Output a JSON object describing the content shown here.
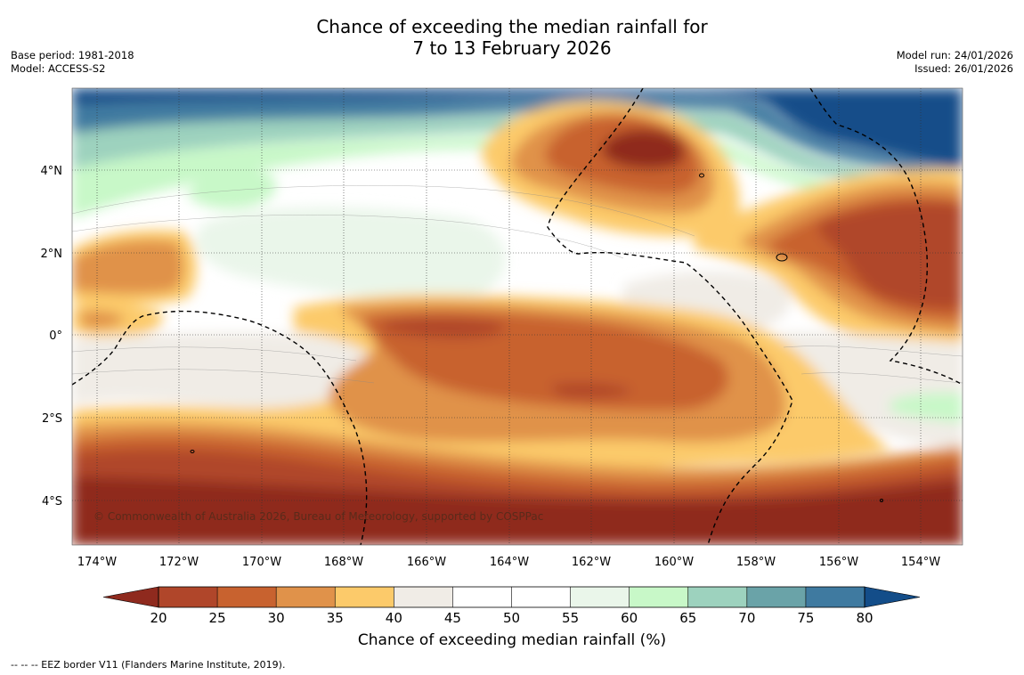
{
  "title": {
    "line1": "Chance of exceeding the median rainfall for",
    "line2": "7 to 13 February 2026"
  },
  "meta_left": {
    "base_period": "Base period: 1981-2018",
    "model": "Model: ACCESS-S2"
  },
  "meta_right": {
    "model_run": "Model run: 24/01/2026",
    "issued": "Issued: 26/01/2026"
  },
  "map": {
    "lon_labels": [
      "174°W",
      "172°W",
      "170°W",
      "168°W",
      "166°W",
      "164°W",
      "162°W",
      "160°W",
      "158°W",
      "156°W",
      "154°W"
    ],
    "lat_labels": [
      "4°N",
      "2°N",
      "0°",
      "2°S",
      "4°S"
    ],
    "copyright": "© Commonwealth of Australia 2026, Bureau of Meteorology, supported by COSPPac"
  },
  "colorbar": {
    "ticks": [
      "20",
      "25",
      "30",
      "35",
      "40",
      "45",
      "50",
      "55",
      "60",
      "65",
      "70",
      "75",
      "80"
    ],
    "colors": [
      "#8f2a1e",
      "#b0462a",
      "#c8622f",
      "#e0924a",
      "#fcca6a",
      "#f0ece6",
      "#ffffff",
      "#ffffff",
      "#eaf6ea",
      "#c8f8c8",
      "#9dd2be",
      "#6aa3a8",
      "#3f7aa0",
      "#134d89"
    ],
    "label": "Chance of exceeding median rainfall (%)"
  },
  "footnote": "--  --  -- EEZ border V11 (Flanders Marine Institute, 2019)."
}
